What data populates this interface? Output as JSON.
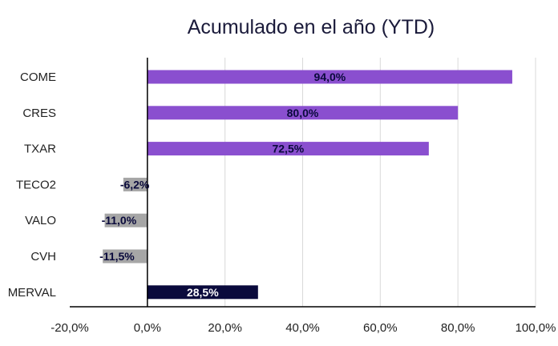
{
  "chart_data": {
    "type": "bar",
    "orientation": "horizontal",
    "title": "Acumulado en el año (YTD)",
    "categories": [
      "COME",
      "CRES",
      "TXAR",
      "TECO2",
      "VALO",
      "CVH",
      "MERVAL"
    ],
    "values": [
      94.0,
      80.0,
      72.5,
      -6.2,
      -11.0,
      -11.5,
      28.5
    ],
    "data_labels": [
      "94,0%",
      "80,0%",
      "72,5%",
      "-6,2%",
      "-11,0%",
      "-11,5%",
      "28,5%"
    ],
    "xlim": [
      -20,
      100
    ],
    "xticks": [
      -20,
      0,
      20,
      40,
      60,
      80,
      100
    ],
    "xtick_labels": [
      "-20,0%",
      "0,0%",
      "20,0%",
      "40,0%",
      "60,0%",
      "80,0%",
      "100,0%"
    ],
    "grid": "vertical",
    "legend": "none",
    "colors": {
      "positive_stock": "#8a4fcf",
      "negative_stock": "#a6a6a6",
      "index": "#0a0a3c",
      "label_dark": "#0a0a3c",
      "label_light": "#ffffff"
    }
  }
}
